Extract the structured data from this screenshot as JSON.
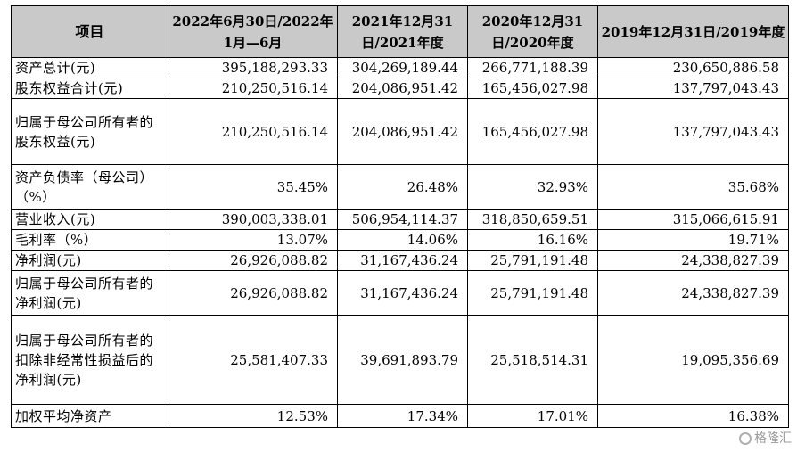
{
  "table": {
    "headers": [
      "项目",
      "2022年6月30日/2022年1月—6月",
      "2021年12月31日/2021年度",
      "2020年12月31日/2020年度",
      "2019年12月31日/2019年度"
    ],
    "rows": [
      {
        "label": "资产总计(元)",
        "values": [
          "395,188,293.33",
          "304,269,189.44",
          "266,771,188.39",
          "230,650,886.58"
        ]
      },
      {
        "label": "股东权益合计(元)",
        "values": [
          "210,250,516.14",
          "204,086,951.42",
          "165,456,027.98",
          "137,797,043.43"
        ]
      },
      {
        "label": "归属于母公司所有者的股东权益(元)",
        "values": [
          "210,250,516.14",
          "204,086,951.42",
          "165,456,027.98",
          "137,797,043.43"
        ]
      },
      {
        "label": "资产负债率（母公司）（%）",
        "values": [
          "35.45%",
          "26.48%",
          "32.93%",
          "35.68%"
        ]
      },
      {
        "label": "营业收入(元)",
        "values": [
          "390,003,338.01",
          "506,954,114.37",
          "318,850,659.51",
          "315,066,615.91"
        ]
      },
      {
        "label": "毛利率（%）",
        "values": [
          "13.07%",
          "14.06%",
          "16.16%",
          "19.71%"
        ]
      },
      {
        "label": "净利润(元)",
        "values": [
          "26,926,088.82",
          "31,167,436.24",
          "25,791,191.48",
          "24,338,827.39"
        ]
      },
      {
        "label": "归属于母公司所有者的净利润(元)",
        "values": [
          "26,926,088.82",
          "31,167,436.24",
          "25,791,191.48",
          "24,338,827.39"
        ]
      },
      {
        "label": "归属于母公司所有者的扣除非经常性损益后的净利润(元)",
        "values": [
          "25,581,407.33",
          "39,691,893.79",
          "25,518,514.31",
          "19,095,356.69"
        ]
      },
      {
        "label": "加权平均净资产",
        "values": [
          "12.53%",
          "17.34%",
          "17.01%",
          "16.38%"
        ]
      }
    ]
  },
  "watermark": {
    "text": "格隆汇",
    "color": "#9a9a9a"
  }
}
